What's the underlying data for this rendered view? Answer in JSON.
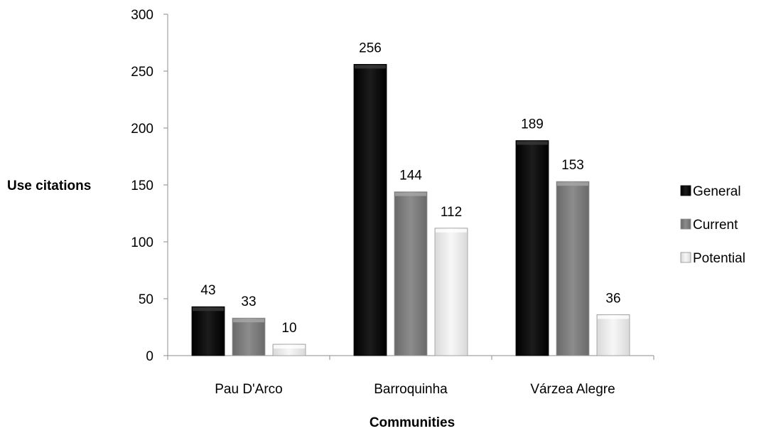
{
  "chart_data": {
    "type": "bar",
    "title": "",
    "xlabel": "Communities",
    "ylabel": "Use citations",
    "categories": [
      "Pau D'Arco",
      "Barroquinha",
      "Várzea Alegre"
    ],
    "series": [
      {
        "name": "General",
        "values": [
          43,
          256,
          189
        ],
        "color": "#0d0d0d"
      },
      {
        "name": "Current",
        "values": [
          33,
          144,
          153
        ],
        "color": "#7f7f7f"
      },
      {
        "name": "Potential",
        "values": [
          10,
          112,
          36
        ],
        "color": "#ececec"
      }
    ],
    "ylim": [
      0,
      300
    ],
    "yticks": [
      0,
      50,
      100,
      150,
      200,
      250,
      300
    ],
    "grid": false,
    "legend_position": "right",
    "data_labels": true
  }
}
